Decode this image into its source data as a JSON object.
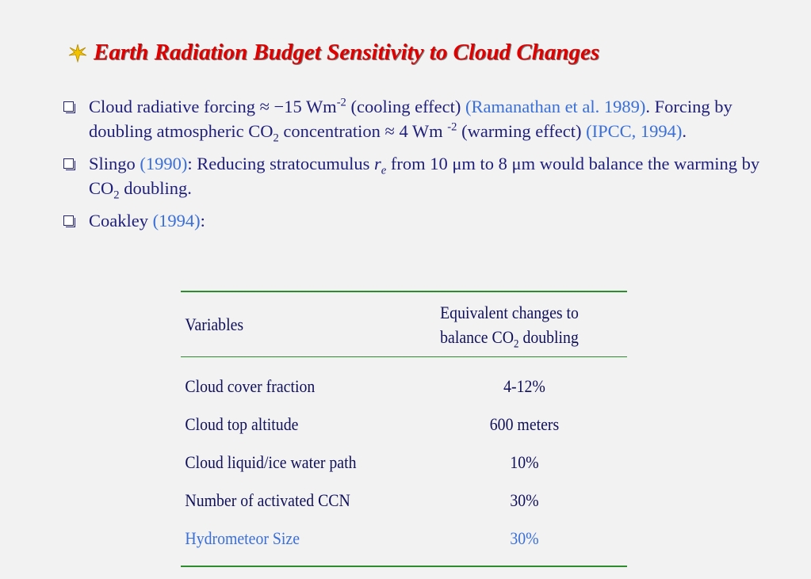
{
  "title": {
    "text": "Earth Radiation Budget Sensitivity to Cloud Changes",
    "icon": "star-icon",
    "color": "#e00000"
  },
  "bullets": {
    "b1": {
      "p1": "Cloud radiative forcing ≈ −15 Wm",
      "sup1": "-2",
      "p2": " (cooling effect) ",
      "cite1": "(Ramanathan et al. 1989)",
      "p3": ". Forcing by doubling atmospheric CO",
      "sub1": "2",
      "p4": " concentration ≈ 4 Wm ",
      "sup2": "-2",
      "p5": " (warming effect) ",
      "cite2": "(IPCC, 1994)",
      "p6": "."
    },
    "b2": {
      "p1": "Slingo ",
      "cite1": "(1990)",
      "p2": ": Reducing stratocumulus ",
      "var": "r",
      "var_sub": "e",
      "p3": " from 10 μm to 8 μm would balance the warming by CO",
      "sub1": "2",
      "p4": " doubling."
    },
    "b3": {
      "p1": "Coakley ",
      "cite1": "(1994)",
      "p2": ":"
    }
  },
  "table": {
    "header": {
      "col1": "Variables",
      "col2_line1": "Equivalent changes to",
      "col2_line2a": "balance CO",
      "col2_sub": "2",
      "col2_line2b": " doubling"
    },
    "rows": [
      {
        "variable": "Cloud cover fraction",
        "change": "4-12%"
      },
      {
        "variable": "Cloud top altitude",
        "change": "600 meters"
      },
      {
        "variable": "Cloud liquid/ice water path",
        "change": "10%"
      },
      {
        "variable": "Number of activated CCN",
        "change": "30%"
      },
      {
        "variable": "Hydrometeor Size",
        "change": "30%"
      }
    ]
  },
  "colors": {
    "text": "#1f1f7a",
    "citation": "#3a6fd8",
    "rule": "#2e8b2e",
    "background": "#f2f2f2"
  }
}
